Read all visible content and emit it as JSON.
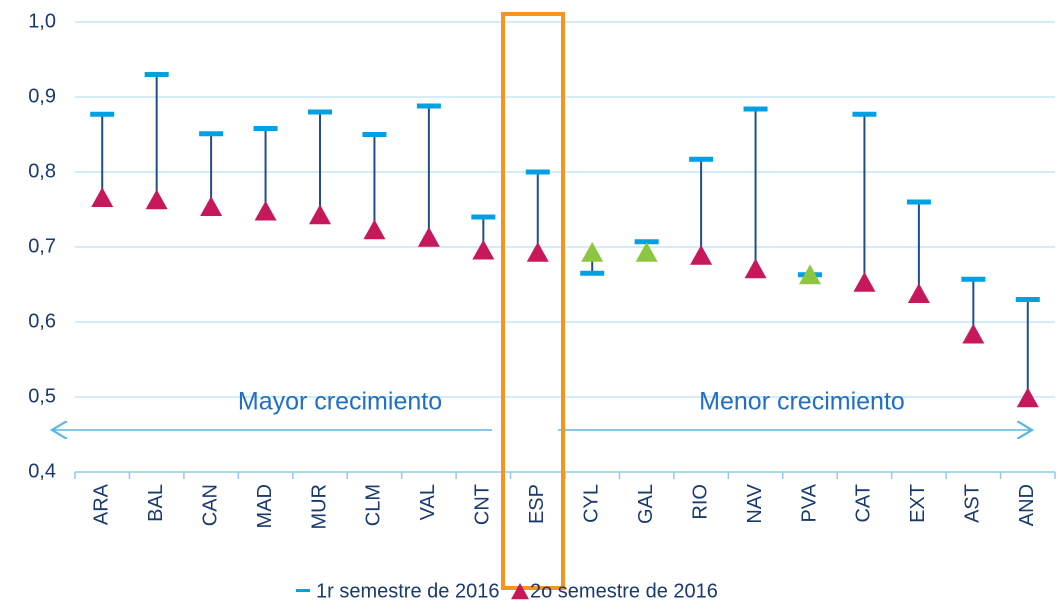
{
  "chart_data": {
    "type": "dumbbell",
    "categories": [
      "ARA",
      "BAL",
      "CAN",
      "MAD",
      "MUR",
      "CLM",
      "VAL",
      "CNT",
      "ESP",
      "CYL",
      "GAL",
      "RIO",
      "NAV",
      "PVA",
      "CAT",
      "EXT",
      "AST",
      "AND"
    ],
    "series": [
      {
        "name": "1r semestre de 2016",
        "color": "#00a0e3",
        "values": [
          0.877,
          0.93,
          0.851,
          0.858,
          0.88,
          0.85,
          0.888,
          0.74,
          0.8,
          0.665,
          0.707,
          0.817,
          0.884,
          0.663,
          0.877,
          0.76,
          0.657,
          0.63
        ]
      },
      {
        "name": "2o semestre de 2016",
        "color": "#c8185c",
        "marker_colors": [
          "#c8185c",
          "#c8185c",
          "#c8185c",
          "#c8185c",
          "#c8185c",
          "#c8185c",
          "#c8185c",
          "#c8185c",
          "#c8185c",
          "#8dc63f",
          "#8dc63f",
          "#c8185c",
          "#c8185c",
          "#8dc63f",
          "#c8185c",
          "#c8185c",
          "#c8185c",
          "#c8185c"
        ],
        "values": [
          0.765,
          0.762,
          0.753,
          0.747,
          0.742,
          0.722,
          0.712,
          0.695,
          0.692,
          0.692,
          0.692,
          0.688,
          0.67,
          0.662,
          0.652,
          0.637,
          0.583,
          0.498
        ]
      }
    ],
    "connector_color": "#1f4e8c",
    "annotations": [
      "Mayor crecimiento",
      "Menor crecimiento"
    ],
    "ylim": [
      0.4,
      1.0
    ],
    "yticks": [
      {
        "value": 0.4,
        "label": "0,4"
      },
      {
        "value": 0.5,
        "label": "0,5"
      },
      {
        "value": 0.6,
        "label": "0,6"
      },
      {
        "value": 0.7,
        "label": "0,7"
      },
      {
        "value": 0.8,
        "label": "0,8"
      },
      {
        "value": 0.9,
        "label": "0,9"
      },
      {
        "value": 1.0,
        "label": "1,0"
      }
    ],
    "grid": true
  }
}
